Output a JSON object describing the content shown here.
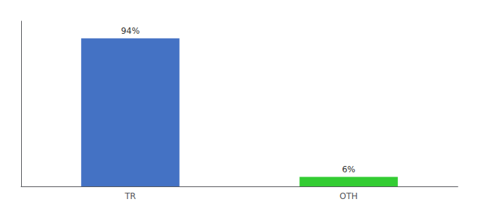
{
  "chart_data": {
    "type": "bar",
    "categories": [
      "TR",
      "OTH"
    ],
    "values": [
      94,
      6
    ],
    "value_labels": [
      "94%",
      "6%"
    ],
    "data_labels": true,
    "colors": [
      "#4472c4",
      "#33cc33"
    ],
    "ylim": [
      0,
      105
    ],
    "yticks": [],
    "tick_labels": "x",
    "grid": false
  }
}
